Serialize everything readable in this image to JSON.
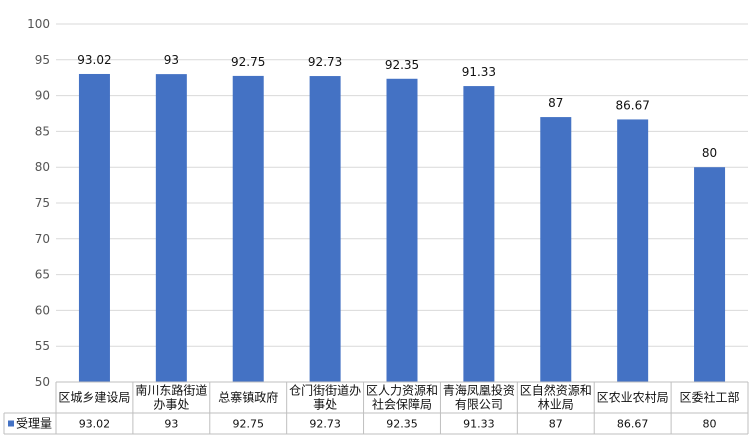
{
  "chart_data": {
    "type": "bar",
    "categories": [
      [
        "区城乡建设局"
      ],
      [
        "南川东路街道",
        "办事处"
      ],
      [
        "总寨镇政府"
      ],
      [
        "仓门街街道办",
        "事处"
      ],
      [
        "区人力资源和",
        "社会保障局"
      ],
      [
        "青海凤凰投资",
        "有限公司"
      ],
      [
        "区自然资源和",
        "林业局"
      ],
      [
        "区农业农村局"
      ],
      [
        "区委社工部"
      ]
    ],
    "series": [
      {
        "name": "受理量",
        "values": [
          93.02,
          93,
          92.75,
          92.73,
          92.35,
          91.33,
          87,
          86.67,
          80
        ],
        "value_labels": [
          "93.02",
          "93",
          "92.75",
          "92.73",
          "92.35",
          "91.33",
          "87",
          "86.67",
          "80"
        ],
        "color": "#4472C4"
      }
    ],
    "ylim": [
      50,
      100
    ],
    "yticks": [
      "50",
      "55",
      "60",
      "65",
      "70",
      "75",
      "80",
      "85",
      "90",
      "95",
      "100"
    ],
    "grid": true,
    "legend": "data-table-left",
    "title": "",
    "xlabel": "",
    "ylabel": ""
  }
}
